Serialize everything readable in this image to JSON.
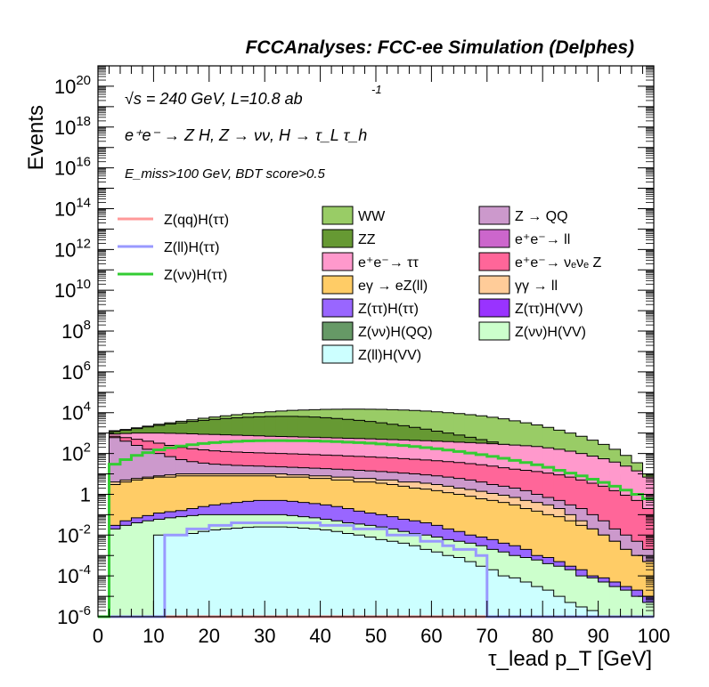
{
  "header": {
    "title": "FCCAnalyses: FCC-ee Simulation (Delphes)"
  },
  "annotations": {
    "energy": "√s = 240 GeV, L=10.8 ab",
    "energy_exp": "-1",
    "process": "e⁺e⁻ → Z H, Z → νν, H → τ_L τ_h",
    "selection": "E_miss>100 GeV, BDT score>0.5"
  },
  "chart_data": {
    "type": "area",
    "xlabel": "τ_lead p_T [GeV]",
    "ylabel": "Events",
    "xlim": [
      0,
      100
    ],
    "ylim": [
      1e-06,
      1e+21
    ],
    "log_y": true,
    "grid": false,
    "legend_position": "center",
    "bin_edges": [
      0,
      2,
      4,
      6,
      8,
      10,
      12,
      14,
      16,
      18,
      20,
      22,
      24,
      26,
      28,
      30,
      32,
      34,
      36,
      38,
      40,
      42,
      44,
      46,
      48,
      50,
      52,
      54,
      56,
      58,
      60,
      62,
      64,
      66,
      68,
      70,
      72,
      74,
      76,
      78,
      80,
      82,
      84,
      86,
      88,
      90,
      92,
      94,
      96,
      98,
      100
    ],
    "x_ticks": [
      "0",
      "10",
      "20",
      "30",
      "40",
      "50",
      "60",
      "70",
      "80",
      "90",
      "100"
    ],
    "y_ticks": [
      "10-6",
      "10-4",
      "10-2",
      "1",
      "102",
      "104",
      "106",
      "108",
      "1010",
      "1012",
      "1014",
      "1016",
      "1018",
      "1020"
    ],
    "stack_envelopes": [
      {
        "name": "WW",
        "color": "#99CC66",
        "values": [
          0,
          1300,
          1500,
          1800,
          2200,
          2700,
          3200,
          3800,
          4500,
          5300,
          6100,
          7000,
          8000,
          9000,
          10000,
          11000,
          12000,
          13000,
          13500,
          14000,
          14500,
          14800,
          15000,
          15000,
          14800,
          14500,
          14000,
          13500,
          12800,
          12000,
          11000,
          10000,
          9000,
          8000,
          7000,
          6000,
          5000,
          4000,
          3200,
          2500,
          1900,
          1400,
          1000,
          700,
          450,
          280,
          160,
          80,
          35,
          10
        ]
      },
      {
        "name": "ZZ",
        "color": "#669933",
        "values": [
          0,
          1200,
          1400,
          1650,
          2000,
          2400,
          2800,
          3200,
          3700,
          4200,
          4700,
          5200,
          5600,
          6000,
          6300,
          6500,
          6600,
          6600,
          6400,
          6100,
          5700,
          5200,
          4700,
          4200,
          3700,
          3200,
          2700,
          2300,
          1900,
          1550,
          1250,
          1000,
          800,
          620,
          480,
          370,
          280,
          210,
          160,
          120,
          88,
          64,
          46,
          32,
          22,
          14,
          9,
          5,
          3,
          1.2
        ]
      },
      {
        "name": "e⁺e⁻→ ττ",
        "color": "#FF99CC",
        "values": [
          0,
          900,
          950,
          1000,
          1000,
          1000,
          980,
          950,
          920,
          880,
          850,
          820,
          790,
          760,
          730,
          700,
          680,
          660,
          640,
          620,
          600,
          580,
          560,
          540,
          520,
          500,
          480,
          460,
          440,
          420,
          400,
          380,
          360,
          340,
          320,
          300,
          280,
          260,
          240,
          220,
          190,
          160,
          130,
          100,
          75,
          55,
          38,
          24,
          14,
          7
        ]
      },
      {
        "name": "e⁺e⁻→ νₑνₑ Z",
        "color": "#FF6699",
        "values": [
          0,
          700,
          600,
          500,
          400,
          320,
          250,
          200,
          170,
          150,
          135,
          125,
          118,
          112,
          108,
          104,
          100,
          96,
          92,
          88,
          84,
          80,
          76,
          72,
          68,
          64,
          60,
          56,
          52,
          48,
          44,
          40,
          36,
          32,
          28,
          24,
          20,
          17,
          15,
          13,
          11,
          9,
          7,
          5,
          3.5,
          2.5,
          1.5,
          0.9,
          0.5,
          0.2
        ]
      },
      {
        "name": "Z → QQ",
        "color": "#CC99CC",
        "values": [
          0,
          600,
          400,
          250,
          160,
          100,
          70,
          50,
          40,
          34,
          30,
          28,
          26,
          25,
          24,
          23,
          22,
          21,
          20,
          19,
          18,
          17,
          16,
          15,
          14,
          13,
          12,
          11,
          10,
          9,
          8,
          7,
          6,
          5,
          4,
          3,
          2.5,
          2,
          1.5,
          1,
          0.7,
          0.5,
          0.3,
          0.2,
          0.1,
          0.05,
          0.02,
          0.01,
          0.005,
          0.002
        ]
      },
      {
        "name": "γγ → ll",
        "color": "#FFCC99",
        "values": [
          0,
          4,
          5,
          6,
          7,
          8,
          9,
          10,
          10,
          10,
          10,
          10,
          10,
          10,
          10,
          10,
          10,
          9,
          9,
          8,
          8,
          7,
          7,
          6,
          6,
          5,
          5,
          4,
          4,
          3.5,
          3,
          2.5,
          2,
          1.7,
          1.4,
          1.1,
          0.9,
          0.7,
          0.5,
          0.4,
          0.3,
          0.2,
          0.1,
          0.05,
          0.02,
          0.01,
          0.005,
          0.002,
          0.001,
          0.0005
        ]
      },
      {
        "name": "eγ → eZ(ll)",
        "color": "#FFCC66",
        "values": [
          0,
          3,
          4,
          5,
          6,
          7,
          7,
          8,
          8,
          8,
          8,
          8,
          8,
          8,
          8,
          8,
          7,
          7,
          7,
          6,
          6,
          5,
          5,
          4,
          4,
          3.5,
          3,
          2.5,
          2,
          1.8,
          1.5,
          1.2,
          1,
          0.8,
          0.6,
          0.5,
          0.4,
          0.3,
          0.2,
          0.15,
          0.1,
          0.08,
          0.05,
          0.03,
          0.02,
          0.01,
          0.005,
          0.002,
          0.001,
          0.0005
        ]
      },
      {
        "name": "Z(ττ)H(ττ)",
        "color": "#9966FF",
        "values": [
          0,
          0.03,
          0.05,
          0.07,
          0.09,
          0.12,
          0.14,
          0.16,
          0.2,
          0.25,
          0.3,
          0.35,
          0.4,
          0.45,
          0.5,
          0.5,
          0.5,
          0.45,
          0.4,
          0.35,
          0.3,
          0.25,
          0.2,
          0.15,
          0.12,
          0.1,
          0.08,
          0.06,
          0.05,
          0.04,
          0.03,
          0.02,
          0.015,
          0.01,
          0.008,
          0.006,
          0.004,
          0.003,
          0.002,
          0.001,
          0.0008,
          0.0005,
          0.0003,
          0.0002,
          0.0001,
          8e-05,
          5e-05,
          3e-05,
          2e-05,
          1e-05
        ]
      },
      {
        "name": "Z(νν)H(VV)",
        "color": "#CCFFCC",
        "values": [
          0,
          0.02,
          0.03,
          0.04,
          0.05,
          0.06,
          0.07,
          0.08,
          0.09,
          0.1,
          0.1,
          0.1,
          0.1,
          0.1,
          0.1,
          0.1,
          0.1,
          0.09,
          0.08,
          0.07,
          0.06,
          0.05,
          0.04,
          0.035,
          0.03,
          0.025,
          0.02,
          0.015,
          0.012,
          0.01,
          0.008,
          0.006,
          0.005,
          0.004,
          0.003,
          0.002,
          0.0015,
          0.001,
          0.0008,
          0.0006,
          0.0004,
          0.0003,
          0.0002,
          0.0001,
          8e-05,
          5e-05,
          3e-05,
          2e-05,
          1e-05,
          5e-06
        ]
      },
      {
        "name": "Z(ll)H(VV)",
        "color": "#CCFFFF",
        "values": [
          0,
          0,
          0,
          0,
          0,
          0.01,
          0.01,
          0.01,
          0.012,
          0.015,
          0.018,
          0.02,
          0.022,
          0.024,
          0.025,
          0.025,
          0.025,
          0.024,
          0.022,
          0.02,
          0.018,
          0.015,
          0.012,
          0.01,
          0.008,
          0.006,
          0.005,
          0.004,
          0.003,
          0.002,
          0.0015,
          0.001,
          0.0008,
          0.0005,
          0.0003,
          0.0002,
          0.0001,
          8e-05,
          5e-05,
          3e-05,
          2e-05,
          1e-05,
          5e-06,
          3e-06,
          2e-06,
          1e-06,
          1e-06,
          1e-06,
          1e-06,
          1e-06
        ]
      }
    ],
    "overlay_lines": [
      {
        "name": "Z(qq)H(ττ)",
        "color": "#FF9999",
        "values": [
          0,
          0,
          0,
          0,
          0,
          0,
          0,
          0,
          0,
          0,
          0,
          0,
          0,
          0,
          0,
          0,
          0,
          0,
          0,
          0,
          0,
          0,
          0,
          0,
          0,
          0,
          0,
          0,
          0,
          0,
          0,
          0,
          0,
          0,
          0,
          0,
          0,
          0,
          0,
          0,
          0,
          0,
          0,
          0,
          0,
          0,
          0,
          0,
          0,
          0
        ]
      },
      {
        "name": "Z(ll)H(ττ)",
        "color": "#9999FF",
        "values": [
          0,
          0,
          0,
          0,
          0,
          0,
          0.01,
          0.01,
          0.02,
          0.02,
          0.03,
          0.03,
          0.04,
          0.04,
          0.04,
          0.04,
          0.04,
          0.04,
          0.04,
          0.04,
          0.03,
          0.03,
          0.03,
          0.02,
          0.02,
          0.02,
          0.01,
          0.01,
          0.01,
          0.005,
          0.005,
          0.003,
          0.002,
          0.002,
          0.001,
          0,
          0,
          0,
          0,
          0,
          0,
          0,
          0,
          0,
          0,
          0,
          0,
          0,
          0,
          0
        ]
      },
      {
        "name": "Z(νν)H(ττ)",
        "color": "#33CC33",
        "values": [
          0,
          30,
          50,
          80,
          110,
          150,
          190,
          230,
          270,
          310,
          340,
          370,
          390,
          410,
          420,
          430,
          430,
          425,
          420,
          410,
          395,
          380,
          360,
          340,
          320,
          295,
          270,
          245,
          220,
          195,
          170,
          148,
          125,
          105,
          88,
          72,
          58,
          46,
          36,
          28,
          21,
          15,
          11,
          8,
          5.5,
          3.8,
          2.5,
          1.6,
          1,
          0.6
        ]
      }
    ]
  }
}
